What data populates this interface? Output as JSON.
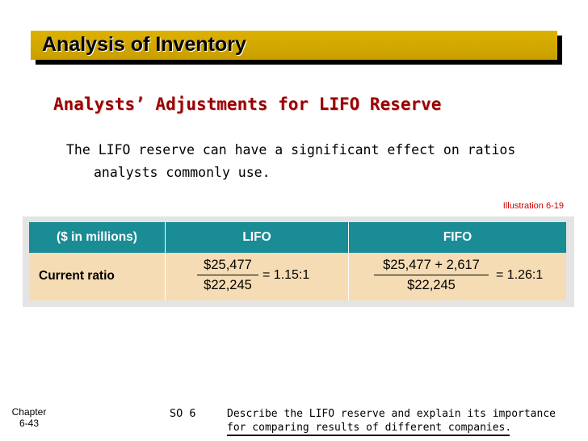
{
  "header": {
    "title": "Analysis of Inventory"
  },
  "section": {
    "subtitle": "Analysts’ Adjustments for LIFO Reserve",
    "body_line1": "The LIFO reserve can have a significant effect on ratios",
    "body_line2": "analysts commonly use."
  },
  "illustration": {
    "label": "Illustration 6-19"
  },
  "table": {
    "headers": [
      "($ in millions)",
      "LIFO",
      "FIFO"
    ],
    "row": {
      "label": "Current ratio",
      "lifo": {
        "numerator": "$25,477",
        "denominator": "$22,245",
        "result": "= 1.15:1"
      },
      "fifo": {
        "numerator": "$25,477 + 2,617",
        "denominator": "$22,245",
        "result": "= 1.26:1"
      }
    }
  },
  "footer": {
    "chapter_label": "Chapter",
    "chapter_page": "6-43",
    "so_label": "SO 6",
    "description_line1": "Describe the LIFO reserve and explain its importance",
    "description_line2": "for comparing results of different companies."
  },
  "colors": {
    "title_bar": "#d4a800",
    "subtitle": "#990000",
    "table_header": "#1a8c96",
    "table_row": "#f6dcb4",
    "illustration_label": "#d10000"
  }
}
